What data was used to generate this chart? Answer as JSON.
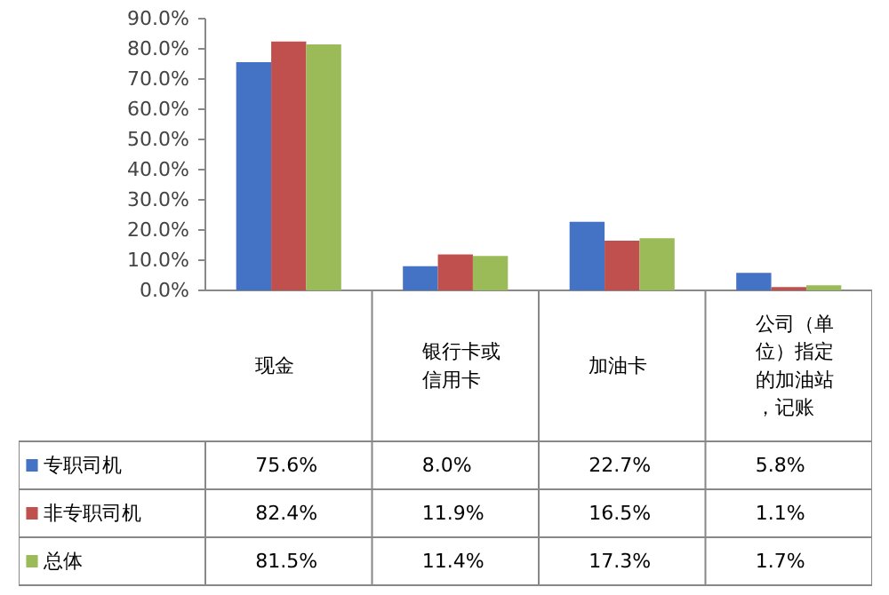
{
  "chart_data": {
    "type": "bar",
    "categories": [
      "现金",
      "银行卡或信用卡",
      "加油卡",
      "公司（单位）指定的加油站，记账"
    ],
    "series": [
      {
        "name": "专职司机",
        "color": "#4472c4",
        "values": [
          75.6,
          8.0,
          22.7,
          5.8
        ],
        "value_labels": [
          "75.6%",
          "8.0%",
          "22.7%",
          "5.8%"
        ]
      },
      {
        "name": "非专职司机",
        "color": "#c0504d",
        "values": [
          82.4,
          11.9,
          16.5,
          1.1
        ],
        "value_labels": [
          "82.4%",
          "11.9%",
          "16.5%",
          "1.1%"
        ]
      },
      {
        "name": "总体",
        "color": "#9bbb59",
        "values": [
          81.5,
          11.4,
          17.3,
          1.7
        ],
        "value_labels": [
          "81.5%",
          "11.4%",
          "17.3%",
          "1.7%"
        ]
      }
    ],
    "ylim": [
      0,
      90
    ],
    "yticks": [
      {
        "value": 0,
        "label": "0.0%"
      },
      {
        "value": 10,
        "label": "10.0%"
      },
      {
        "value": 20,
        "label": "20.0%"
      },
      {
        "value": 30,
        "label": "30.0%"
      },
      {
        "value": 40,
        "label": "40.0%"
      },
      {
        "value": 50,
        "label": "50.0%"
      },
      {
        "value": 60,
        "label": "60.0%"
      },
      {
        "value": 70,
        "label": "70.0%"
      },
      {
        "value": 80,
        "label": "80.0%"
      },
      {
        "value": 90,
        "label": "90.0%"
      }
    ],
    "grid": false,
    "legend": "bottom left"
  }
}
